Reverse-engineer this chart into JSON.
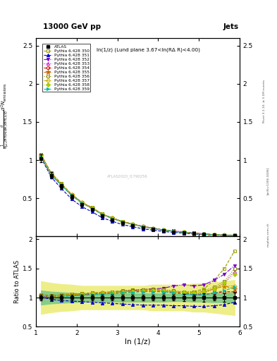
{
  "title_top": "13000 GeV pp",
  "title_right": "Jets",
  "plot_label": "ln(1/z) (Lund plane 3.67<ln(RΔ R)<4.00)",
  "ylabel_main": "d² N_emissions",
  "ylabel_ratio": "Ratio to ATLAS",
  "xlabel": "ln (1/z)",
  "rivet_label": "Rivet 3.1.10, ≥ 3.1M events",
  "arxiv_label": "[arXiv:1306.3436]",
  "mcplots_label": "mcplots.cern.ch",
  "watermark": "ATLAS2020_I1790256",
  "xlim": [
    1.0,
    6.0
  ],
  "ylim_main": [
    0.0,
    2.6
  ],
  "ylim_ratio": [
    0.5,
    2.05
  ],
  "x_data": [
    1.125,
    1.375,
    1.625,
    1.875,
    2.125,
    2.375,
    2.625,
    2.875,
    3.125,
    3.375,
    3.625,
    3.875,
    4.125,
    4.375,
    4.625,
    4.875,
    5.125,
    5.375,
    5.625,
    5.875
  ],
  "atlas_y": [
    1.02,
    0.8,
    0.66,
    0.52,
    0.42,
    0.35,
    0.27,
    0.22,
    0.175,
    0.145,
    0.115,
    0.095,
    0.075,
    0.062,
    0.05,
    0.038,
    0.028,
    0.02,
    0.014,
    0.01
  ],
  "atlas_yerr": [
    0.05,
    0.04,
    0.03,
    0.025,
    0.02,
    0.016,
    0.013,
    0.01,
    0.008,
    0.007,
    0.006,
    0.005,
    0.004,
    0.003,
    0.003,
    0.002,
    0.002,
    0.001,
    0.001,
    0.001
  ],
  "ratio_green_lo": [
    0.88,
    0.9,
    0.91,
    0.92,
    0.93,
    0.93,
    0.93,
    0.93,
    0.93,
    0.93,
    0.93,
    0.93,
    0.93,
    0.94,
    0.94,
    0.93,
    0.93,
    0.92,
    0.92,
    0.91
  ],
  "ratio_green_hi": [
    1.12,
    1.1,
    1.09,
    1.08,
    1.07,
    1.07,
    1.07,
    1.07,
    1.07,
    1.07,
    1.07,
    1.07,
    1.07,
    1.06,
    1.06,
    1.07,
    1.07,
    1.08,
    1.08,
    1.09
  ],
  "ratio_yellow_lo": [
    0.72,
    0.75,
    0.77,
    0.78,
    0.8,
    0.8,
    0.8,
    0.8,
    0.8,
    0.8,
    0.8,
    0.78,
    0.78,
    0.78,
    0.78,
    0.76,
    0.76,
    0.74,
    0.72,
    0.7
  ],
  "ratio_yellow_hi": [
    1.28,
    1.25,
    1.23,
    1.22,
    1.2,
    1.2,
    1.2,
    1.2,
    1.2,
    1.2,
    1.2,
    1.22,
    1.22,
    1.22,
    1.22,
    1.24,
    1.24,
    1.26,
    1.28,
    1.3
  ],
  "series": [
    {
      "label": "Pythia 6.428 350",
      "color": "#999900",
      "marker": "s",
      "marker_fill": "none",
      "linestyle": "--",
      "ratio_y": [
        1.05,
        1.04,
        1.05,
        1.06,
        1.07,
        1.08,
        1.09,
        1.1,
        1.12,
        1.13,
        1.14,
        1.15,
        1.12,
        1.1,
        1.09,
        1.1,
        1.15,
        1.3,
        1.5,
        1.8
      ]
    },
    {
      "label": "Pythia 6.428 351",
      "color": "#0000cc",
      "marker": "^",
      "marker_fill": "full",
      "linestyle": "--",
      "ratio_y": [
        1.01,
        0.97,
        0.95,
        0.94,
        0.93,
        0.92,
        0.91,
        0.9,
        0.89,
        0.88,
        0.87,
        0.87,
        0.87,
        0.86,
        0.86,
        0.85,
        0.85,
        0.86,
        0.88,
        0.92
      ]
    },
    {
      "label": "Pythia 6.428 352",
      "color": "#7700cc",
      "marker": "v",
      "marker_fill": "full",
      "linestyle": "-.",
      "ratio_y": [
        1.03,
        1.01,
        1.02,
        1.04,
        1.05,
        1.06,
        1.07,
        1.09,
        1.1,
        1.12,
        1.14,
        1.15,
        1.16,
        1.2,
        1.22,
        1.2,
        1.22,
        1.3,
        1.4,
        1.55
      ]
    },
    {
      "label": "Pythia 6.428 353",
      "color": "#cc00cc",
      "marker": "^",
      "marker_fill": "none",
      "linestyle": ":",
      "ratio_y": [
        1.04,
        1.02,
        1.03,
        1.05,
        1.06,
        1.07,
        1.08,
        1.09,
        1.1,
        1.11,
        1.12,
        1.12,
        1.12,
        1.1,
        1.09,
        1.05,
        1.08,
        1.15,
        1.25,
        1.45
      ]
    },
    {
      "label": "Pythia 6.428 354",
      "color": "#cc0000",
      "marker": "o",
      "marker_fill": "none",
      "linestyle": "--",
      "ratio_y": [
        1.03,
        1.01,
        1.02,
        1.04,
        1.05,
        1.06,
        1.07,
        1.08,
        1.09,
        1.1,
        1.11,
        1.11,
        1.1,
        1.08,
        1.07,
        1.05,
        1.05,
        1.08,
        1.1,
        1.1
      ]
    },
    {
      "label": "Pythia 6.428 355",
      "color": "#cc6600",
      "marker": "*",
      "marker_fill": "full",
      "linestyle": "--",
      "ratio_y": [
        1.04,
        1.02,
        1.03,
        1.05,
        1.06,
        1.07,
        1.08,
        1.09,
        1.1,
        1.11,
        1.12,
        1.13,
        1.12,
        1.1,
        1.09,
        1.08,
        1.1,
        1.15,
        1.2,
        1.15
      ]
    },
    {
      "label": "Pythia 6.428 356",
      "color": "#888800",
      "marker": "s",
      "marker_fill": "none",
      "linestyle": ":",
      "ratio_y": [
        1.05,
        1.03,
        1.04,
        1.06,
        1.07,
        1.08,
        1.09,
        1.1,
        1.12,
        1.13,
        1.14,
        1.15,
        1.14,
        1.12,
        1.1,
        1.1,
        1.12,
        1.18,
        1.28,
        1.5
      ]
    },
    {
      "label": "Pythia 6.428 357",
      "color": "#ccaa00",
      "marker": "D",
      "marker_fill": "none",
      "linestyle": "-.",
      "ratio_y": [
        1.04,
        1.02,
        1.03,
        1.05,
        1.06,
        1.07,
        1.08,
        1.09,
        1.1,
        1.11,
        1.12,
        1.12,
        1.12,
        1.1,
        1.09,
        1.08,
        1.1,
        1.15,
        1.2,
        1.2
      ]
    },
    {
      "label": "Pythia 6.428 358",
      "color": "#aacc00",
      "marker": "D",
      "marker_fill": "full",
      "linestyle": ":",
      "ratio_y": [
        1.03,
        1.01,
        1.02,
        1.04,
        1.05,
        1.06,
        1.07,
        1.08,
        1.09,
        1.1,
        1.11,
        1.12,
        1.12,
        1.1,
        1.09,
        1.08,
        1.1,
        1.15,
        1.25,
        1.4
      ]
    },
    {
      "label": "Pythia 6.428 359",
      "color": "#00bbaa",
      "marker": ">",
      "marker_fill": "full",
      "linestyle": "--",
      "ratio_y": [
        1.02,
        1.0,
        1.01,
        1.03,
        1.04,
        1.05,
        1.06,
        1.07,
        1.08,
        1.09,
        1.1,
        1.1,
        1.1,
        1.08,
        1.06,
        1.05,
        1.05,
        1.08,
        1.12,
        1.18
      ]
    }
  ]
}
